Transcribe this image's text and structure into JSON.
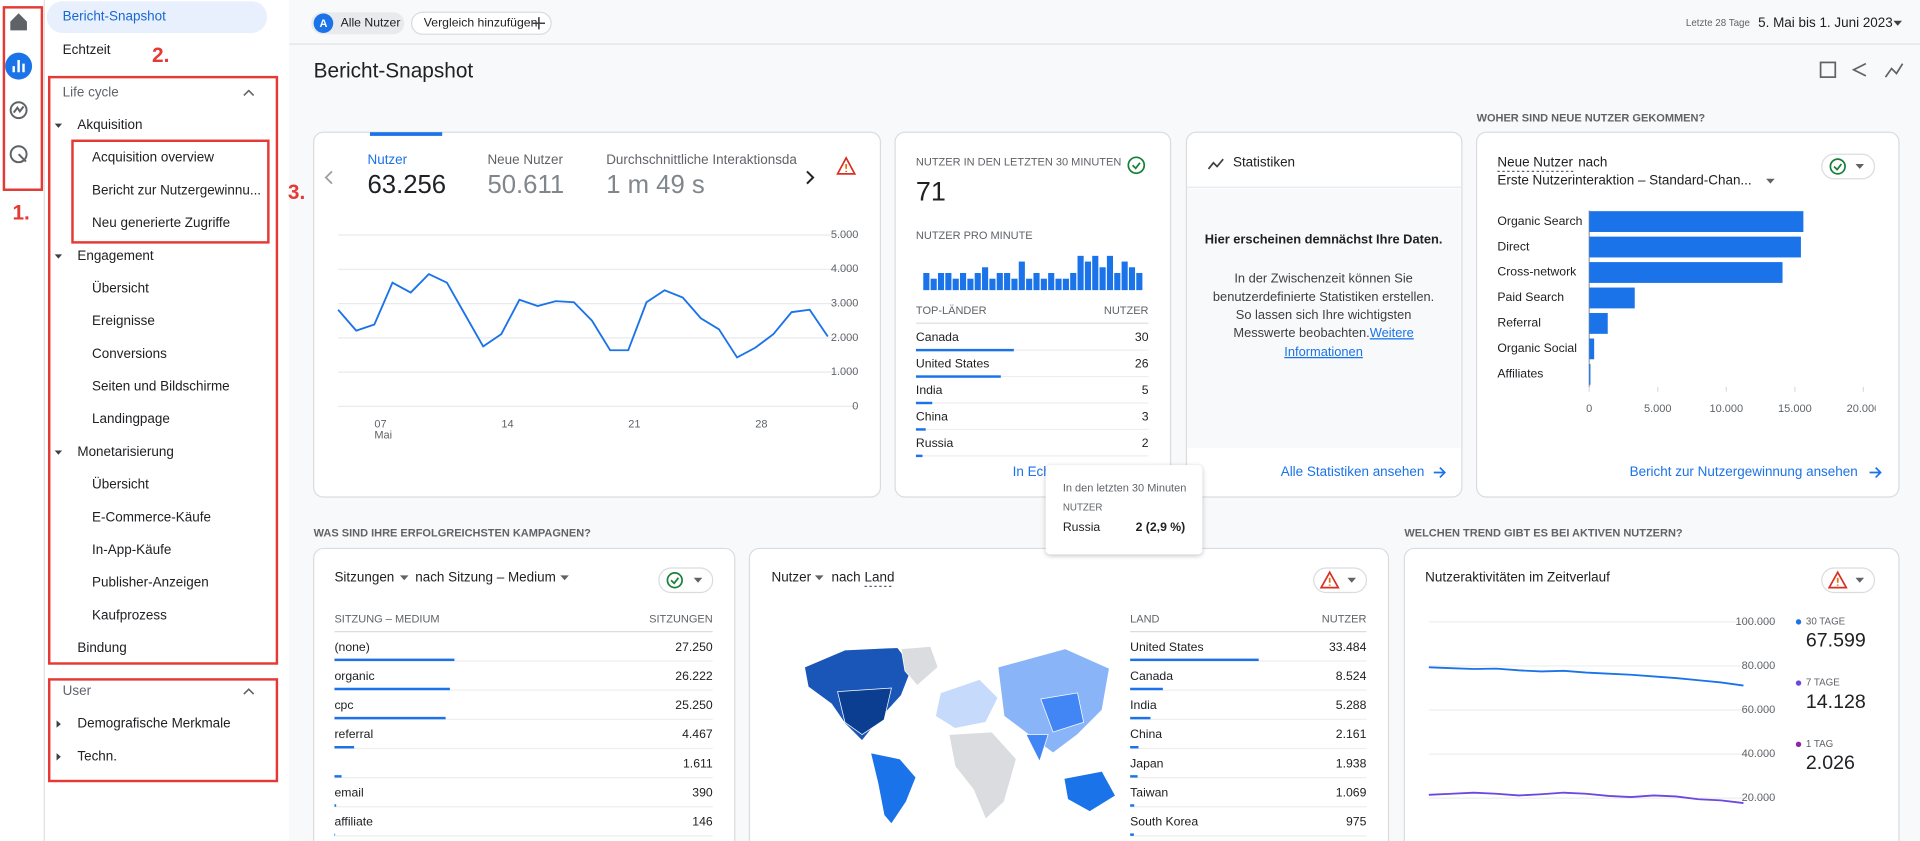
{
  "topbar": {
    "avatar": "A",
    "segment": "Alle Nutzer",
    "compare": "Vergleich hinzufügen",
    "range_label": "Letzte 28 Tage",
    "range": "5. Mai bis 1. Juni 2023"
  },
  "sidebar": {
    "annotations": [
      "1.",
      "2.",
      "3."
    ],
    "top_items": [
      "Bericht-Snapshot",
      "Echtzeit"
    ],
    "sections": [
      {
        "title": "Life cycle",
        "groups": [
          {
            "title": "Akquisition",
            "expanded": true,
            "items": [
              "Acquisition overview",
              "Bericht zur Nutzergewinnu...",
              "Neu generierte Zugriffe"
            ]
          },
          {
            "title": "Engagement",
            "expanded": true,
            "items": [
              "Übersicht",
              "Ereignisse",
              "Conversions",
              "Seiten und Bildschirme",
              "Landingpage"
            ]
          },
          {
            "title": "Monetarisierung",
            "expanded": true,
            "items": [
              "Übersicht",
              "E-Commerce-Käufe",
              "In-App-Käufe",
              "Publisher-Anzeigen",
              "Kaufprozess"
            ]
          },
          {
            "title": "Bindung",
            "items": []
          }
        ]
      },
      {
        "title": "User",
        "groups": [
          {
            "title": "Demografische Merkmale",
            "expanded": false,
            "items": []
          },
          {
            "title": "Techn.",
            "expanded": false,
            "items": []
          }
        ]
      }
    ]
  },
  "page_title": "Bericht-Snapshot",
  "overview": {
    "metrics": [
      {
        "label": "Nutzer",
        "value": "63.256"
      },
      {
        "label": "Neue Nutzer",
        "value": "50.611"
      },
      {
        "label": "Durchschnittliche Interaktionsda",
        "value": "1 m 49 s"
      }
    ],
    "chart": {
      "type": "line",
      "color": "#1a73e8",
      "categories": [
        null,
        null,
        "07",
        null,
        null,
        null,
        null,
        null,
        null,
        "14",
        null,
        null,
        null,
        null,
        null,
        null,
        "21",
        null,
        null,
        null,
        null,
        null,
        null,
        "28",
        null,
        null,
        null,
        null
      ],
      "x_sublabel": "Mai",
      "values": [
        2820,
        2210,
        2390,
        3610,
        3320,
        3860,
        3610,
        2680,
        1750,
        2110,
        3110,
        2930,
        3070,
        3040,
        2500,
        1640,
        1640,
        3040,
        3390,
        3180,
        2570,
        2250,
        1430,
        1710,
        2110,
        2750,
        2820,
        2040
      ],
      "ylim": [
        0,
        5000
      ],
      "yticks": [
        0,
        {
          "value": 1000,
          "label": "1.000"
        },
        {
          "value": 2000,
          "label": "2.000"
        },
        {
          "value": 3000,
          "label": "3.000"
        },
        {
          "value": 4000,
          "label": "4.000"
        },
        {
          "value": 5000,
          "label": "5.000"
        }
      ],
      "grid": true
    }
  },
  "realtime": {
    "title": "NUTZER IN DEN LETZTEN 30 MINUTEN",
    "value": "71",
    "per_minute_label": "NUTZER PRO MINUTE",
    "per_minute": {
      "type": "bar",
      "color": "#1a73e8",
      "values": [
        3,
        2,
        3,
        3,
        2,
        3,
        2,
        3,
        4,
        2,
        3,
        3,
        2,
        5,
        2,
        3,
        2,
        3,
        2,
        2,
        3,
        6,
        5,
        6,
        4,
        6,
        3,
        5,
        4,
        3
      ]
    },
    "headers": [
      "TOP-LÄNDER",
      "NUTZER"
    ],
    "rows": [
      {
        "name": "Canada",
        "value": 30
      },
      {
        "name": "United States",
        "value": 26
      },
      {
        "name": "India",
        "value": 5
      },
      {
        "name": "China",
        "value": 3
      },
      {
        "name": "Russia",
        "value": 2
      }
    ],
    "link": "In Echtzeit ansehen"
  },
  "tooltip": {
    "title": "In den letzten 30 Minuten",
    "header": "NUTZER",
    "name": "Russia",
    "value": "2 (2,9 %)"
  },
  "insights": {
    "title": "Statistiken",
    "heading": "Hier erscheinen demnächst Ihre Daten.",
    "body": [
      "In der Zwischenzeit können Sie",
      "benutzerdefinierte Statistiken erstellen.",
      "So lassen sich Ihre wichtigsten",
      "Messwerte beobachten."
    ],
    "more": [
      "Weitere",
      "Informationen"
    ],
    "link": "Alle Statistiken ansehen"
  },
  "acquisition": {
    "section": "WOHER SIND NEUE NUTZER GEKOMMEN?",
    "metric": "Neue Nutzer",
    "by": "nach",
    "dimension": "Erste Nutzerinteraktion – Standard-Chan...",
    "chart": {
      "type": "hbar",
      "color": "#1a73e8",
      "categories": [
        "Organic Search",
        "Direct",
        "Cross-network",
        "Paid Search",
        "Referral",
        "Organic Social",
        "Affiliates"
      ],
      "values": [
        15620,
        15440,
        14100,
        3320,
        1350,
        360,
        90
      ],
      "xlim": [
        0,
        20000
      ],
      "xticks": [
        0,
        {
          "value": 5000,
          "label": "5.000"
        },
        {
          "value": 10000,
          "label": "10.000"
        },
        {
          "value": 15000,
          "label": "15.000"
        },
        {
          "value": 20000,
          "label": "20.000"
        }
      ]
    },
    "link": "Bericht zur Nutzergewinnung ansehen"
  },
  "campaigns": {
    "section": "WAS SIND IHRE ERFOLGREICHSTEN KAMPAGNEN?",
    "metric": "Sitzungen",
    "dimension": "nach Sitzung – Medium",
    "headers": [
      "SITZUNG – MEDIUM",
      "SITZUNGEN"
    ],
    "rows": [
      {
        "name": "(none)",
        "value": 27250,
        "label": "27.250"
      },
      {
        "name": "organic",
        "value": 26222,
        "label": "26.222"
      },
      {
        "name": "cpc",
        "value": 25250,
        "label": "25.250"
      },
      {
        "name": "referral",
        "value": 4467,
        "label": "4.467"
      },
      {
        "name": null,
        "value": 1611,
        "label": "1.611"
      },
      {
        "name": "email",
        "value": 390,
        "label": "390"
      },
      {
        "name": "affiliate",
        "value": 146,
        "label": "146"
      }
    ]
  },
  "countries": {
    "metric": "Nutzer",
    "by": "nach",
    "dimension": "Land",
    "headers": [
      "LAND",
      "NUTZER"
    ],
    "rows": [
      {
        "name": "United States",
        "value": 33484,
        "label": "33.484"
      },
      {
        "name": "Canada",
        "value": 8524,
        "label": "8.524"
      },
      {
        "name": "India",
        "value": 5288,
        "label": "5.288"
      },
      {
        "name": "China",
        "value": 2161,
        "label": "2.161"
      },
      {
        "name": "Japan",
        "value": 1938,
        "label": "1.938"
      },
      {
        "name": "Taiwan",
        "value": 1069,
        "label": "1.069"
      },
      {
        "name": "South Korea",
        "value": 975,
        "label": "975"
      }
    ]
  },
  "trend": {
    "section": "WELCHEN TREND GIBT ES BEI AKTIVEN NUTZERN?",
    "title": "Nutzeraktivitäten im Zeitverlauf",
    "chart": {
      "type": "line",
      "ylim": [
        0,
        100000
      ],
      "yticks": [
        {
          "value": 20000,
          "label": "20.000"
        },
        {
          "value": 40000,
          "label": "40.000"
        },
        {
          "value": 60000,
          "label": "60.000"
        },
        {
          "value": 80000,
          "label": "80.000"
        },
        {
          "value": 100000,
          "label": "100.000"
        }
      ],
      "grid": true,
      "series": [
        {
          "name": "30 TAGE",
          "color": "#1a73e8",
          "total": "67.599",
          "values": [
            79400,
            79000,
            78600,
            78800,
            78000,
            77500,
            77800,
            77000,
            76500,
            76000,
            75200,
            74500,
            73500,
            72500,
            71100
          ]
        },
        {
          "name": "7 TAGE",
          "color": "#6c47e0",
          "total": "14.128",
          "values": [
            21500,
            22000,
            22500,
            22000,
            21200,
            21800,
            22500,
            22000,
            21000,
            20500,
            21200,
            20800,
            19500,
            19000,
            17800
          ]
        },
        {
          "name": "1 TAG",
          "color": "#8e24aa",
          "total": "2.026"
        }
      ]
    }
  }
}
